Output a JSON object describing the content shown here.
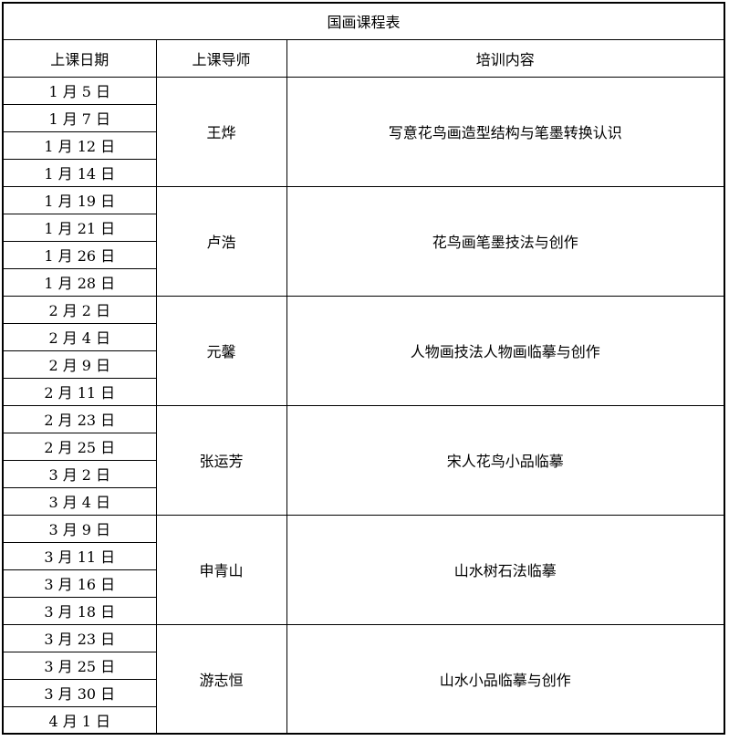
{
  "table": {
    "title": "国画课程表",
    "headers": [
      "上课日期",
      "上课导师",
      "培训内容"
    ],
    "groups": [
      {
        "dates": [
          "1 月 5 日",
          "1 月 7 日",
          "1 月 12 日",
          "1 月 14 日"
        ],
        "instructor": "王烨",
        "content": "写意花鸟画造型结构与笔墨转换认识"
      },
      {
        "dates": [
          "1 月 19 日",
          "1 月 21 日",
          "1 月 26 日",
          "1 月 28 日"
        ],
        "instructor": "卢浩",
        "content": "花鸟画笔墨技法与创作"
      },
      {
        "dates": [
          "2 月 2 日",
          "2 月 4 日",
          "2 月 9 日",
          "2 月 11 日"
        ],
        "instructor": "元馨",
        "content": "人物画技法人物画临摹与创作"
      },
      {
        "dates": [
          "2 月 23 日",
          "2 月 25 日",
          "3 月 2 日",
          "3 月 4 日"
        ],
        "instructor": "张运芳",
        "content": "宋人花鸟小品临摹"
      },
      {
        "dates": [
          "3 月 9 日",
          "3 月 11 日",
          "3 月 16 日",
          "3 月 18 日"
        ],
        "instructor": "申青山",
        "content": "山水树石法临摹"
      },
      {
        "dates": [
          "3 月 23 日",
          "3 月 25 日",
          "3 月 30 日",
          "4 月 1 日"
        ],
        "instructor": "游志恒",
        "content": "山水小品临摹与创作"
      }
    ]
  }
}
